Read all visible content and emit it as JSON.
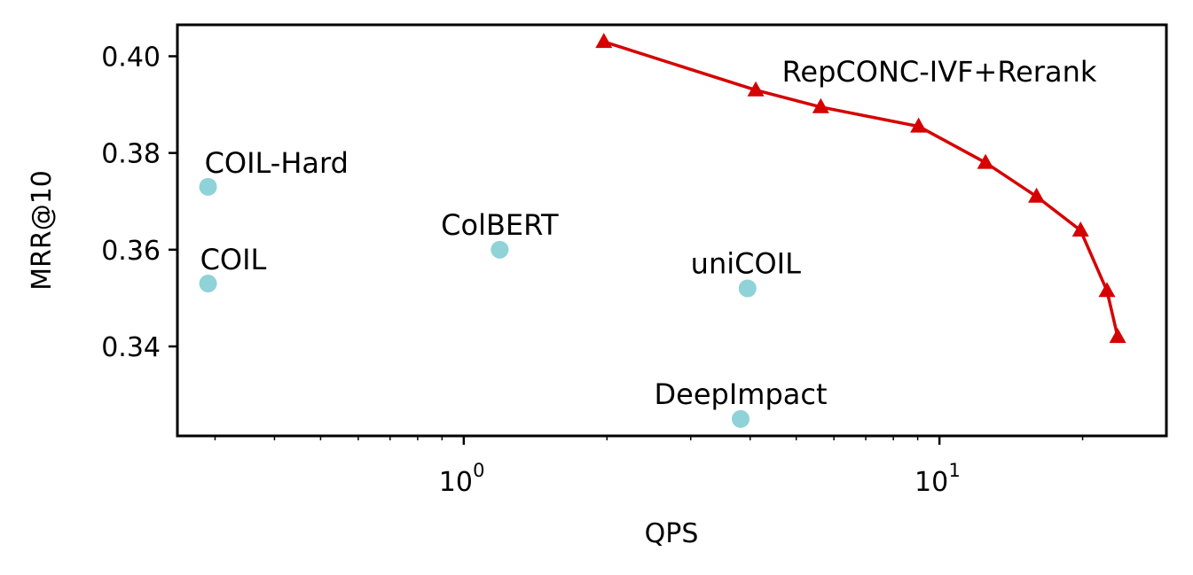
{
  "chart_data": {
    "type": "scatter",
    "xlabel": "QPS",
    "ylabel": "MRR@10",
    "xscale": "log",
    "xlim": [
      0.25,
      30
    ],
    "ylim": [
      0.3215,
      0.4065
    ],
    "x_ticks": [
      {
        "value": 1,
        "base": "10",
        "exp": "0"
      },
      {
        "value": 10,
        "base": "10",
        "exp": "1"
      }
    ],
    "y_ticks": [
      {
        "value": 0.34,
        "label": "0.34"
      },
      {
        "value": 0.36,
        "label": "0.36"
      },
      {
        "value": 0.38,
        "label": "0.38"
      },
      {
        "value": 0.4,
        "label": "0.40"
      }
    ],
    "grid": false,
    "colors": {
      "points": "#8fd2d8",
      "line": "#d60000"
    },
    "points": [
      {
        "label": "COIL-Hard",
        "x": 0.29,
        "y": 0.373
      },
      {
        "label": "COIL",
        "x": 0.29,
        "y": 0.353
      },
      {
        "label": "ColBERT",
        "x": 1.19,
        "y": 0.36
      },
      {
        "label": "uniCOIL",
        "x": 3.95,
        "y": 0.352
      },
      {
        "label": "DeepImpact",
        "x": 3.82,
        "y": 0.325
      }
    ],
    "series": [
      {
        "label": "RepCONC-IVF+Rerank",
        "marker": "triangle",
        "x": [
          1.97,
          4.11,
          5.63,
          9.04,
          12.5,
          16.0,
          19.8,
          22.5,
          23.7
        ],
        "y": [
          0.403,
          0.393,
          0.3895,
          0.3855,
          0.378,
          0.371,
          0.364,
          0.3515,
          0.342
        ]
      }
    ]
  }
}
